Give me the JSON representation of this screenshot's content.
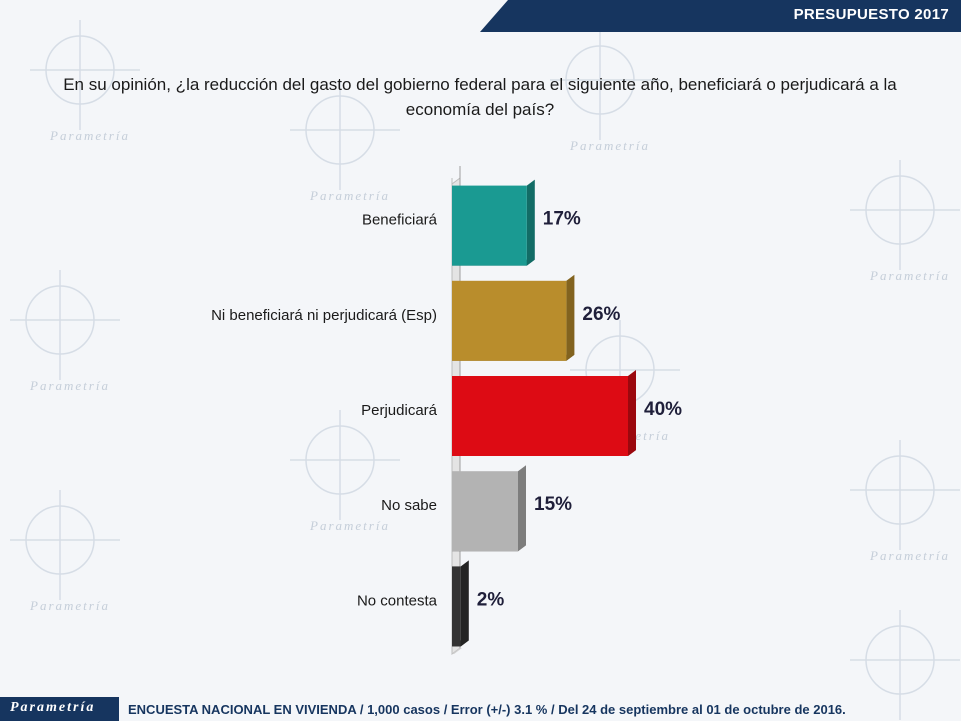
{
  "header": {
    "banner": "PRESUPUESTO 2017"
  },
  "question": "En su opinión, ¿la reducción del gasto del gobierno federal para el siguiente año, beneficiará o perjudicará a la economía del país?",
  "watermark": {
    "brand": "Parametría"
  },
  "footer": {
    "brand": "Parametría",
    "note": "ENCUESTA NACIONAL EN VIVIENDA / 1,000 casos / Error (+/-) 3.1 % / Del 24 de septiembre al 01 de octubre de 2016."
  },
  "colors": {
    "banner": "#16355f",
    "teal": "#1a9a92",
    "gold": "#b98d2c",
    "red": "#dd0b14",
    "gray": "#b3b3b3",
    "dark": "#333333"
  },
  "chart_data": {
    "type": "bar",
    "orientation": "horizontal",
    "categories": [
      "Beneficiará",
      "Ni beneficiará ni perjudicará (Esp)",
      "Perjudicará",
      "No sabe",
      "No contesta"
    ],
    "values": [
      17,
      26,
      40,
      15,
      2
    ],
    "value_labels": [
      "17%",
      "26%",
      "40%",
      "15%",
      "2%"
    ],
    "bar_colors": [
      "#1a9a92",
      "#b98d2c",
      "#dd0b14",
      "#b3b3b3",
      "#333333"
    ],
    "xlim": [
      0,
      40
    ],
    "grid": false,
    "legend": "none"
  }
}
